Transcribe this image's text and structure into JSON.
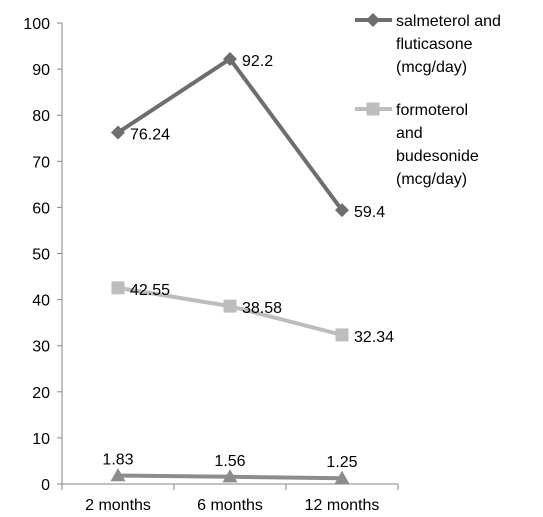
{
  "chart_data": {
    "type": "line",
    "categories": [
      "2 months",
      "6 months",
      "12 months"
    ],
    "ylim": [
      0,
      100
    ],
    "yticks": [
      0,
      10,
      20,
      30,
      40,
      50,
      60,
      70,
      80,
      90,
      100
    ],
    "grid": false,
    "legend_position": "top-right",
    "series": [
      {
        "name": "salmeterol and fluticasone (mcg/day)",
        "name_lines": [
          "salmeterol and",
          "fluticasone",
          "(mcg/day)"
        ],
        "marker": "diamond",
        "color": "#6e6e6e",
        "values": [
          76.24,
          92.2,
          59.4
        ],
        "labels": [
          "76.24",
          "92.2",
          "59.4"
        ]
      },
      {
        "name": "formoterol and budesonide (mcg/day)",
        "name_lines": [
          "formoterol",
          "and",
          "budesonide",
          "(mcg/day)"
        ],
        "marker": "square",
        "color": "#bdbdbd",
        "values": [
          42.55,
          38.58,
          32.34
        ],
        "labels": [
          "42.55",
          "38.58",
          "32.34"
        ]
      },
      {
        "name": "",
        "name_lines": [],
        "marker": "triangle",
        "color": "#8c8c8c",
        "values": [
          1.83,
          1.56,
          1.25
        ],
        "labels": [
          "1.83",
          "1.56",
          "1.25"
        ]
      }
    ]
  }
}
